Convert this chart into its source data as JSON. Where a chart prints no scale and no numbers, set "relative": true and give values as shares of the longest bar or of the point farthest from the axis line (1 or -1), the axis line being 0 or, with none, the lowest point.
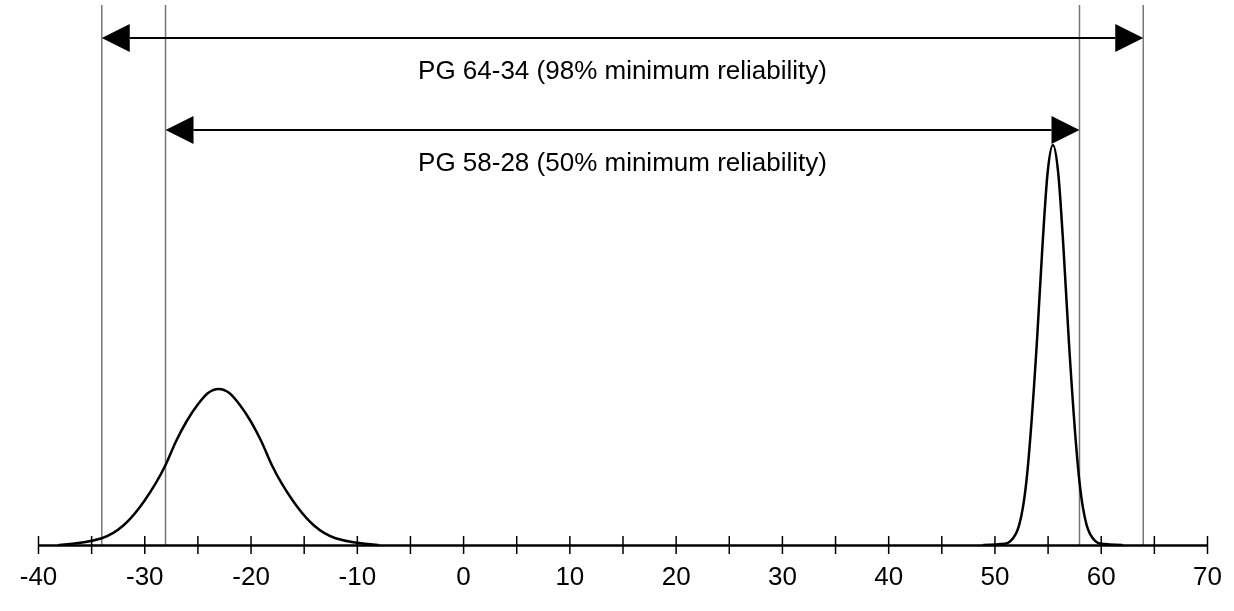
{
  "chart_data": {
    "type": "line",
    "relative": true,
    "xlim": [
      -40,
      70
    ],
    "xticks": [
      -40,
      {
        "value": -35,
        "label": null
      },
      -30,
      {
        "value": -25,
        "label": null
      },
      -20,
      {
        "value": -15,
        "label": null
      },
      -10,
      {
        "value": -5,
        "label": null
      },
      0,
      {
        "value": 5,
        "label": null
      },
      10,
      {
        "value": 15,
        "label": null
      },
      20,
      {
        "value": 25,
        "label": null
      },
      30,
      {
        "value": 35,
        "label": null
      },
      40,
      {
        "value": 45,
        "label": null
      },
      50,
      {
        "value": 55,
        "label": null
      },
      60,
      {
        "value": 65,
        "label": null
      },
      70
    ],
    "series": [
      {
        "color": "#000000",
        "x": [
          -38,
          -34,
          -32,
          -30,
          -28,
          -27,
          -26,
          -25,
          -24,
          -23,
          -22,
          -21,
          -20,
          -19,
          -18,
          -16,
          -14,
          -12,
          -8
        ],
        "values": [
          0,
          0.017,
          0.048,
          0.11,
          0.2,
          0.26,
          0.31,
          0.35,
          0.38,
          0.39,
          0.38,
          0.35,
          0.31,
          0.26,
          0.2,
          0.11,
          0.048,
          0.017,
          0
        ]
      },
      {
        "color": "#000000",
        "x": [
          49,
          51,
          52,
          53,
          54,
          54.5,
          55,
          55.5,
          56,
          56.5,
          57,
          58,
          59,
          60,
          62
        ],
        "values": [
          0,
          0.003,
          0.027,
          0.158,
          0.51,
          0.74,
          0.93,
          1,
          0.93,
          0.74,
          0.51,
          0.158,
          0.027,
          0.003,
          0
        ]
      }
    ],
    "ref_lines": [
      {
        "axis": "x",
        "value": -34,
        "color": "#777777"
      },
      {
        "axis": "x",
        "value": -28,
        "color": "#777777"
      },
      {
        "axis": "x",
        "value": 58,
        "color": "#777777"
      },
      {
        "axis": "x",
        "value": 64,
        "color": "#777777"
      }
    ],
    "annotations": [
      "PG 64-34 (98% minimum reliability)",
      "PG 58-28 (50% minimum reliability)"
    ],
    "marker": "none",
    "line_style": "solid"
  }
}
